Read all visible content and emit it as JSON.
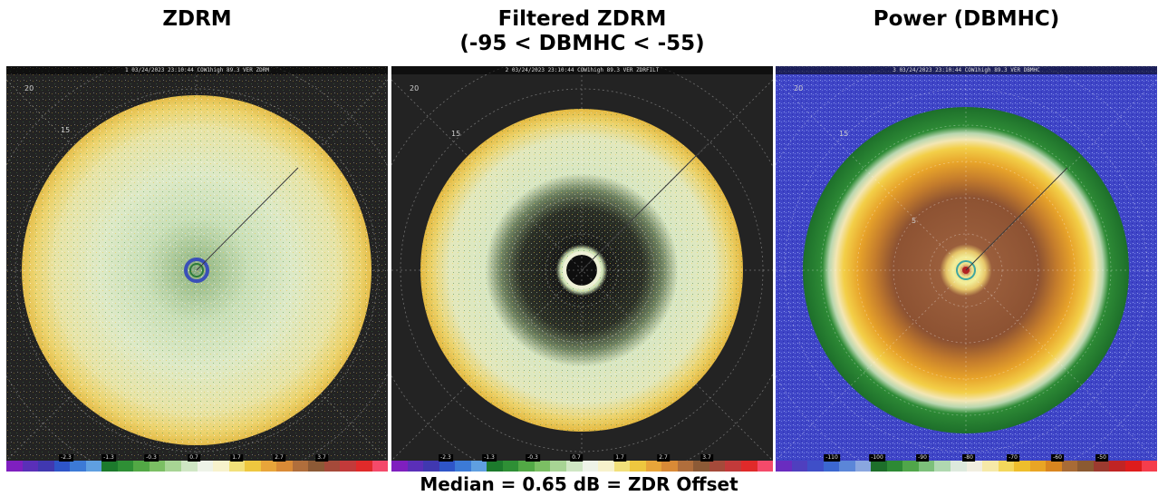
{
  "panels": [
    {
      "title_line1": "",
      "title_line2": "ZDRM",
      "header": "1 03/24/2023 23:10:44 COW1high 89.3 VER ZDRM",
      "ring_labels": [
        "20",
        "15"
      ],
      "colorbar_ticks": [
        "-2.3",
        "-1.3",
        "-0.3",
        "0.7",
        "1.7",
        "2.7",
        "3.7"
      ],
      "palette": "zdr"
    },
    {
      "title_line1": "Filtered ZDRM",
      "title_line2": "(-95 < DBMHC < -55)",
      "header": "2 03/24/2023 23:10:44 COW1high 89.3 VER ZDRFILT",
      "ring_labels": [
        "20",
        "15"
      ],
      "colorbar_ticks": [
        "-2.3",
        "-1.3",
        "-0.3",
        "0.7",
        "1.7",
        "2.7",
        "3.7"
      ],
      "palette": "zdr"
    },
    {
      "title_line1": "",
      "title_line2": "Power (DBMHC)",
      "header": "3 03/24/2023 23:10:44 COW1high 89.3 VER DBMHC",
      "ring_labels": [
        "20",
        "15",
        "5"
      ],
      "colorbar_ticks": [
        "-110",
        "-100",
        "-90",
        "-80",
        "-70",
        "-60",
        "-50"
      ],
      "palette": "power"
    }
  ],
  "footer": "Median = 0.65 dB = ZDR Offset",
  "palettes": {
    "zdr": [
      "#7f1fbf",
      "#5a2fb8",
      "#4038b0",
      "#2e55c8",
      "#3c7ad6",
      "#5f9fe0",
      "#1c7a2c",
      "#2e8f35",
      "#52a845",
      "#7bbf63",
      "#a7d494",
      "#cfe6c4",
      "#eef3e8",
      "#f7f2cc",
      "#f2e07a",
      "#eec73f",
      "#e8a53a",
      "#d98a36",
      "#b06e3c",
      "#8c5a36",
      "#a54a3a",
      "#c23a3a",
      "#e02a2a",
      "#f44a6a"
    ],
    "power": [
      "#6a2cc0",
      "#4f3fbf",
      "#3f4fc8",
      "#3b67d0",
      "#5b86d8",
      "#8aa6df",
      "#1d6f2a",
      "#2d8a34",
      "#50a64a",
      "#7cc07a",
      "#b0d8b0",
      "#dde9dd",
      "#f1eee0",
      "#f6e9a8",
      "#f3d75c",
      "#eebe2c",
      "#e9a525",
      "#d9851f",
      "#a86b36",
      "#8b5a32",
      "#9c3a2f",
      "#c02424",
      "#de1c1c",
      "#f53d4c"
    ]
  }
}
